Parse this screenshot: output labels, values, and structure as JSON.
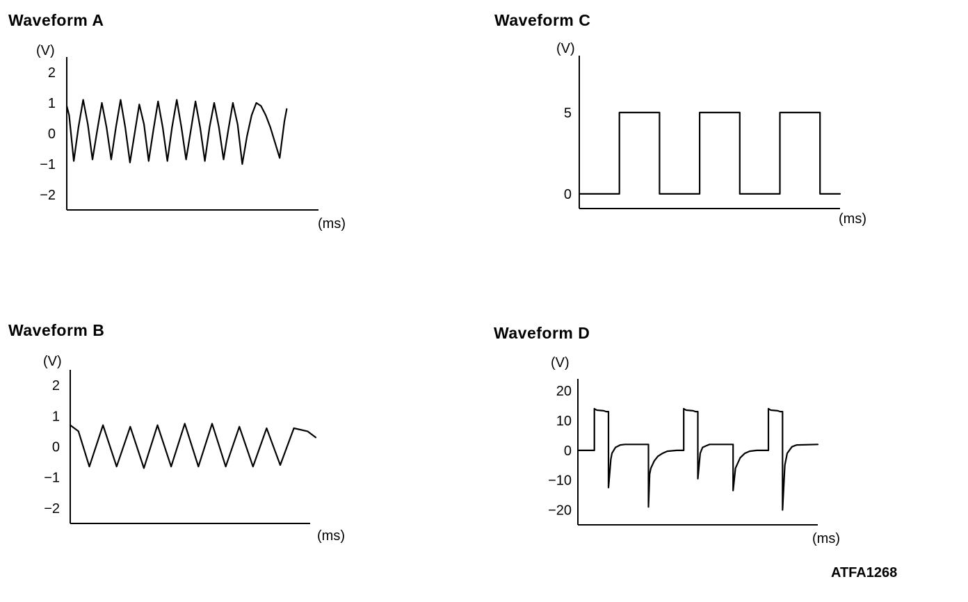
{
  "figure_code": "ATFA1268",
  "chart_data": [
    {
      "id": "a",
      "type": "line",
      "title": "Waveform A",
      "ylabel": "(V)",
      "xlabel": "(ms)",
      "y_ticks": [
        2,
        1,
        0,
        -1,
        -2
      ],
      "y_tick_labels": [
        "2",
        "1",
        "0",
        "−1",
        "−2"
      ],
      "ylim": [
        -2.5,
        2.5
      ],
      "grid": false,
      "series": [
        {
          "x": [
            0.0,
            0.1,
            0.3,
            0.5,
            0.7,
            0.9,
            1.1,
            1.3,
            1.5,
            1.7,
            1.9,
            2.1,
            2.3,
            2.5,
            2.7,
            2.9,
            3.1,
            3.3,
            3.5,
            3.7,
            3.9,
            4.1,
            4.3,
            4.5,
            4.7,
            4.9,
            5.1,
            5.3,
            5.5,
            5.7,
            5.9,
            6.1,
            6.3,
            6.5,
            6.7,
            6.9,
            7.1,
            7.3,
            7.5,
            7.7,
            7.9,
            8.1,
            8.3,
            8.5,
            8.7,
            8.9,
            9.1,
            9.3,
            9.4
          ],
          "y": [
            0.9,
            0.6,
            -0.9,
            0.2,
            1.1,
            0.3,
            -0.85,
            0.1,
            1.0,
            0.2,
            -0.85,
            0.2,
            1.1,
            0.2,
            -0.95,
            0.0,
            0.95,
            0.3,
            -0.9,
            0.1,
            1.05,
            0.2,
            -0.9,
            0.2,
            1.1,
            0.2,
            -0.85,
            0.1,
            1.05,
            0.2,
            -0.9,
            0.2,
            1.0,
            0.2,
            -0.85,
            0.1,
            1.0,
            0.3,
            -1.0,
            -0.1,
            0.6,
            1.0,
            0.9,
            0.6,
            0.2,
            -0.3,
            -0.8,
            0.4,
            0.8
          ]
        }
      ]
    },
    {
      "id": "b",
      "type": "line",
      "title": "Waveform B",
      "ylabel": "(V)",
      "xlabel": "(ms)",
      "y_ticks": [
        2,
        1,
        0,
        -1,
        -2
      ],
      "y_tick_labels": [
        "2",
        "1",
        "0",
        "−1",
        "−2"
      ],
      "ylim": [
        -2.5,
        2.5
      ],
      "grid": false,
      "series": [
        {
          "x": [
            0.0,
            0.3,
            0.7,
            1.2,
            1.7,
            2.2,
            2.7,
            3.2,
            3.7,
            4.2,
            4.7,
            5.2,
            5.7,
            6.2,
            6.7,
            7.2,
            7.7,
            8.2,
            8.7,
            9.0
          ],
          "y": [
            0.7,
            0.5,
            -0.65,
            0.7,
            -0.65,
            0.65,
            -0.7,
            0.7,
            -0.65,
            0.75,
            -0.65,
            0.75,
            -0.65,
            0.65,
            -0.65,
            0.6,
            -0.6,
            0.6,
            0.5,
            0.3
          ]
        }
      ]
    },
    {
      "id": "c",
      "type": "line",
      "title": "Waveform C",
      "ylabel": "(V)",
      "xlabel": "(ms)",
      "y_ticks": [
        5,
        0
      ],
      "y_tick_labels": [
        "5",
        "0"
      ],
      "ylim": [
        -0.9,
        8.5
      ],
      "grid": false,
      "series": [
        {
          "x": [
            0.0,
            1.6,
            1.6,
            3.2,
            3.2,
            4.8,
            4.8,
            6.4,
            6.4,
            8.0,
            8.0,
            9.6,
            9.6,
            10.4
          ],
          "y": [
            0,
            0,
            5,
            5,
            0,
            0,
            5,
            5,
            0,
            0,
            5,
            5,
            0,
            0
          ]
        }
      ]
    },
    {
      "id": "d",
      "type": "line",
      "title": "Waveform D",
      "ylabel": "(V)",
      "xlabel": "(ms)",
      "y_ticks": [
        20,
        10,
        0,
        -10,
        -20
      ],
      "y_tick_labels": [
        "20",
        "10",
        "0",
        "−10",
        "−20"
      ],
      "ylim": [
        -25,
        24
      ],
      "grid": false,
      "series": [
        {
          "x": [
            0.0,
            0.7,
            0.7,
            0.8,
            1.1,
            1.2,
            1.3,
            1.3,
            1.4,
            1.45,
            1.6,
            1.8,
            2.0,
            3.0,
            3.0,
            3.05,
            3.1,
            3.25,
            3.4,
            3.6,
            3.8,
            4.2,
            4.5,
            4.5,
            4.6,
            4.9,
            5.0,
            5.1,
            5.1,
            5.2,
            5.3,
            5.45,
            5.6,
            6.5,
            6.6,
            6.6,
            6.7,
            6.9,
            7.1,
            7.3,
            7.6,
            8.0,
            8.1,
            8.1,
            8.2,
            8.5,
            8.6,
            8.7,
            8.7,
            8.8,
            8.9,
            9.1,
            9.3,
            10.2
          ],
          "y": [
            0,
            0,
            14,
            13.5,
            13.3,
            13,
            13,
            -12.5,
            -3,
            -1,
            1.0,
            1.8,
            2,
            2,
            -19,
            -8,
            -6,
            -3.5,
            -2,
            -1,
            -0.3,
            0,
            0,
            14,
            13.5,
            13.3,
            13,
            13,
            -9.5,
            -1,
            1.0,
            1.5,
            2,
            2,
            2,
            -13.5,
            -6,
            -2.5,
            -1,
            -0.3,
            0,
            0,
            0,
            14,
            13.5,
            13.3,
            13,
            13,
            -20,
            -5,
            -1,
            1.2,
            1.8,
            2
          ]
        }
      ]
    }
  ]
}
